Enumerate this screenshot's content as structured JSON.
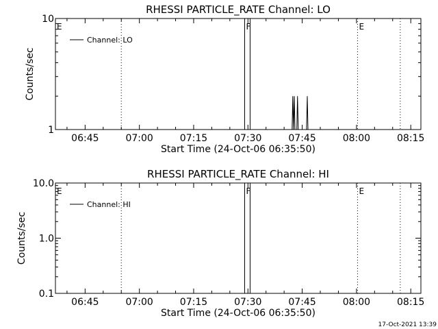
{
  "footer_timestamp": "17-Oct-2021 13:39",
  "chart_data": [
    {
      "type": "line",
      "title": "RHESSI PARTICLE_RATE Channel: LO",
      "xlabel": "Start Time (24-Oct-06 06:35:50)",
      "ylabel": "Counts/sec",
      "yscale": "log",
      "ylim": [
        1,
        10
      ],
      "xlim_minutes": [
        1.0,
        102.0
      ],
      "xticks": [
        {
          "label": "06:45",
          "min": 9.2
        },
        {
          "label": "07:00",
          "min": 24.2
        },
        {
          "label": "07:15",
          "min": 39.2
        },
        {
          "label": "07:30",
          "min": 54.2
        },
        {
          "label": "07:45",
          "min": 69.2
        },
        {
          "label": "08:00",
          "min": 84.2
        },
        {
          "label": "08:15",
          "min": 99.2
        }
      ],
      "yticks": [
        {
          "label": "10",
          "value": 10
        },
        {
          "label": "1",
          "value": 1
        }
      ],
      "legend": {
        "entries": [
          "Channel: LO"
        ],
        "placement": "top-left"
      },
      "markers": [
        {
          "label": "E",
          "min": 1.0,
          "style": "dotted"
        },
        {
          "label": "",
          "min": 19.2,
          "style": "dotted"
        },
        {
          "label": "F",
          "min": 53.3,
          "style": "solid"
        },
        {
          "label": "",
          "min": 54.8,
          "style": "solid"
        },
        {
          "label": "E",
          "min": 84.5,
          "style": "dotted"
        },
        {
          "label": "",
          "min": 96.3,
          "style": "dotted"
        }
      ],
      "series": [
        {
          "name": "Channel: LO",
          "points": [
            [
              66.4,
              1
            ],
            [
              66.6,
              2
            ],
            [
              66.8,
              1
            ],
            [
              67.0,
              2
            ],
            [
              67.2,
              1
            ],
            [
              67.7,
              1
            ],
            [
              67.9,
              2
            ],
            [
              68.1,
              1
            ],
            [
              70.4,
              1
            ],
            [
              70.6,
              2
            ],
            [
              70.8,
              1
            ]
          ]
        }
      ]
    },
    {
      "type": "line",
      "title": "RHESSI PARTICLE_RATE Channel: HI",
      "xlabel": "Start Time (24-Oct-06 06:35:50)",
      "ylabel": "Counts/sec",
      "yscale": "log",
      "ylim": [
        0.1,
        10
      ],
      "xlim_minutes": [
        1.0,
        102.0
      ],
      "xticks": [
        {
          "label": "06:45",
          "min": 9.2
        },
        {
          "label": "07:00",
          "min": 24.2
        },
        {
          "label": "07:15",
          "min": 39.2
        },
        {
          "label": "07:30",
          "min": 54.2
        },
        {
          "label": "07:45",
          "min": 69.2
        },
        {
          "label": "08:00",
          "min": 84.2
        },
        {
          "label": "08:15",
          "min": 99.2
        }
      ],
      "yticks": [
        {
          "label": "10.0",
          "value": 10
        },
        {
          "label": "1.0",
          "value": 1
        },
        {
          "label": "0.1",
          "value": 0.1
        }
      ],
      "legend": {
        "entries": [
          "Channel: HI"
        ],
        "placement": "top-left"
      },
      "markers": [
        {
          "label": "E",
          "min": 1.0,
          "style": "dotted"
        },
        {
          "label": "",
          "min": 19.2,
          "style": "dotted"
        },
        {
          "label": "F",
          "min": 53.3,
          "style": "solid"
        },
        {
          "label": "",
          "min": 54.8,
          "style": "solid"
        },
        {
          "label": "E",
          "min": 84.5,
          "style": "dotted"
        },
        {
          "label": "",
          "min": 96.3,
          "style": "dotted"
        }
      ],
      "series": [
        {
          "name": "Channel: HI",
          "points": []
        }
      ]
    }
  ]
}
